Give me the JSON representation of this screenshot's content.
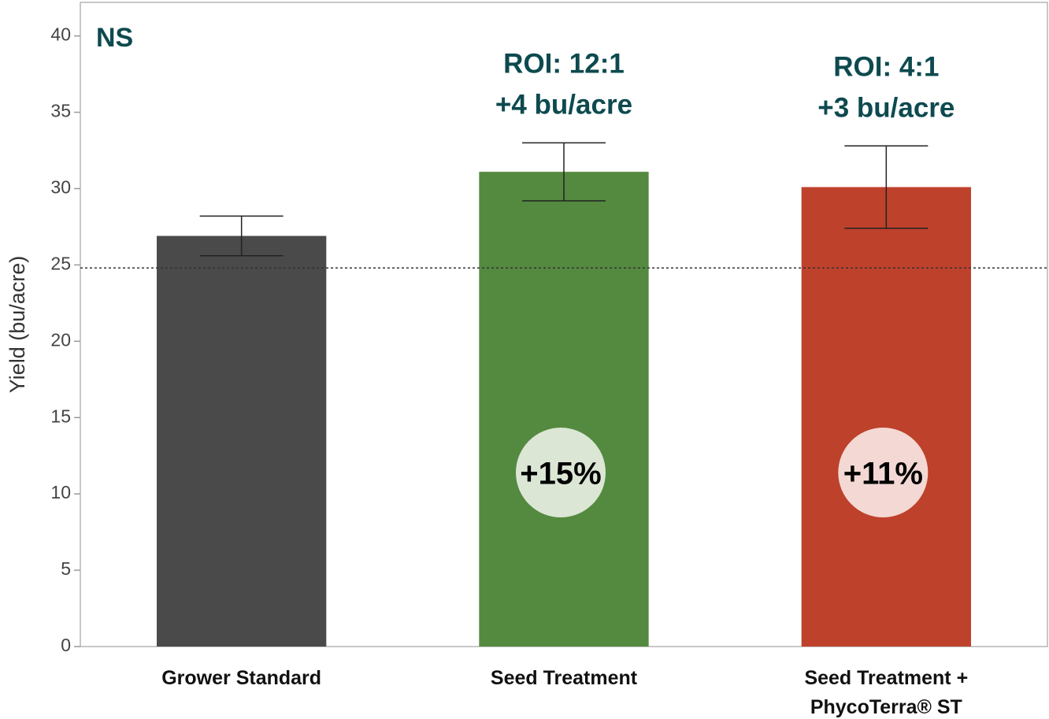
{
  "chart_data": {
    "type": "bar",
    "categories": [
      "Grower Standard",
      "Seed Treatment",
      "Seed Treatment + PhycoTerra® ST"
    ],
    "values": [
      26.9,
      31.1,
      30.1
    ],
    "errors": [
      1.3,
      1.9,
      2.7
    ],
    "colors": [
      "#4a4a4a",
      "#548a3f",
      "#be412b"
    ],
    "y_label": "Yield (bu/acre)",
    "ylim": [
      0,
      42.2
    ],
    "yticks": [
      0,
      5,
      10,
      15,
      20,
      25,
      30,
      35,
      40
    ],
    "reference_line": 24.8,
    "significance": "NS",
    "callouts": [
      null,
      {
        "roi": "ROI: 12:1",
        "gain": "+4 bu/acre",
        "percent": "+15%",
        "circle_color": "#dbe6d5"
      },
      {
        "roi": "ROI: 4:1",
        "gain": "+3 bu/acre",
        "percent": "+11%",
        "circle_color": "#f3d8d3"
      }
    ]
  }
}
